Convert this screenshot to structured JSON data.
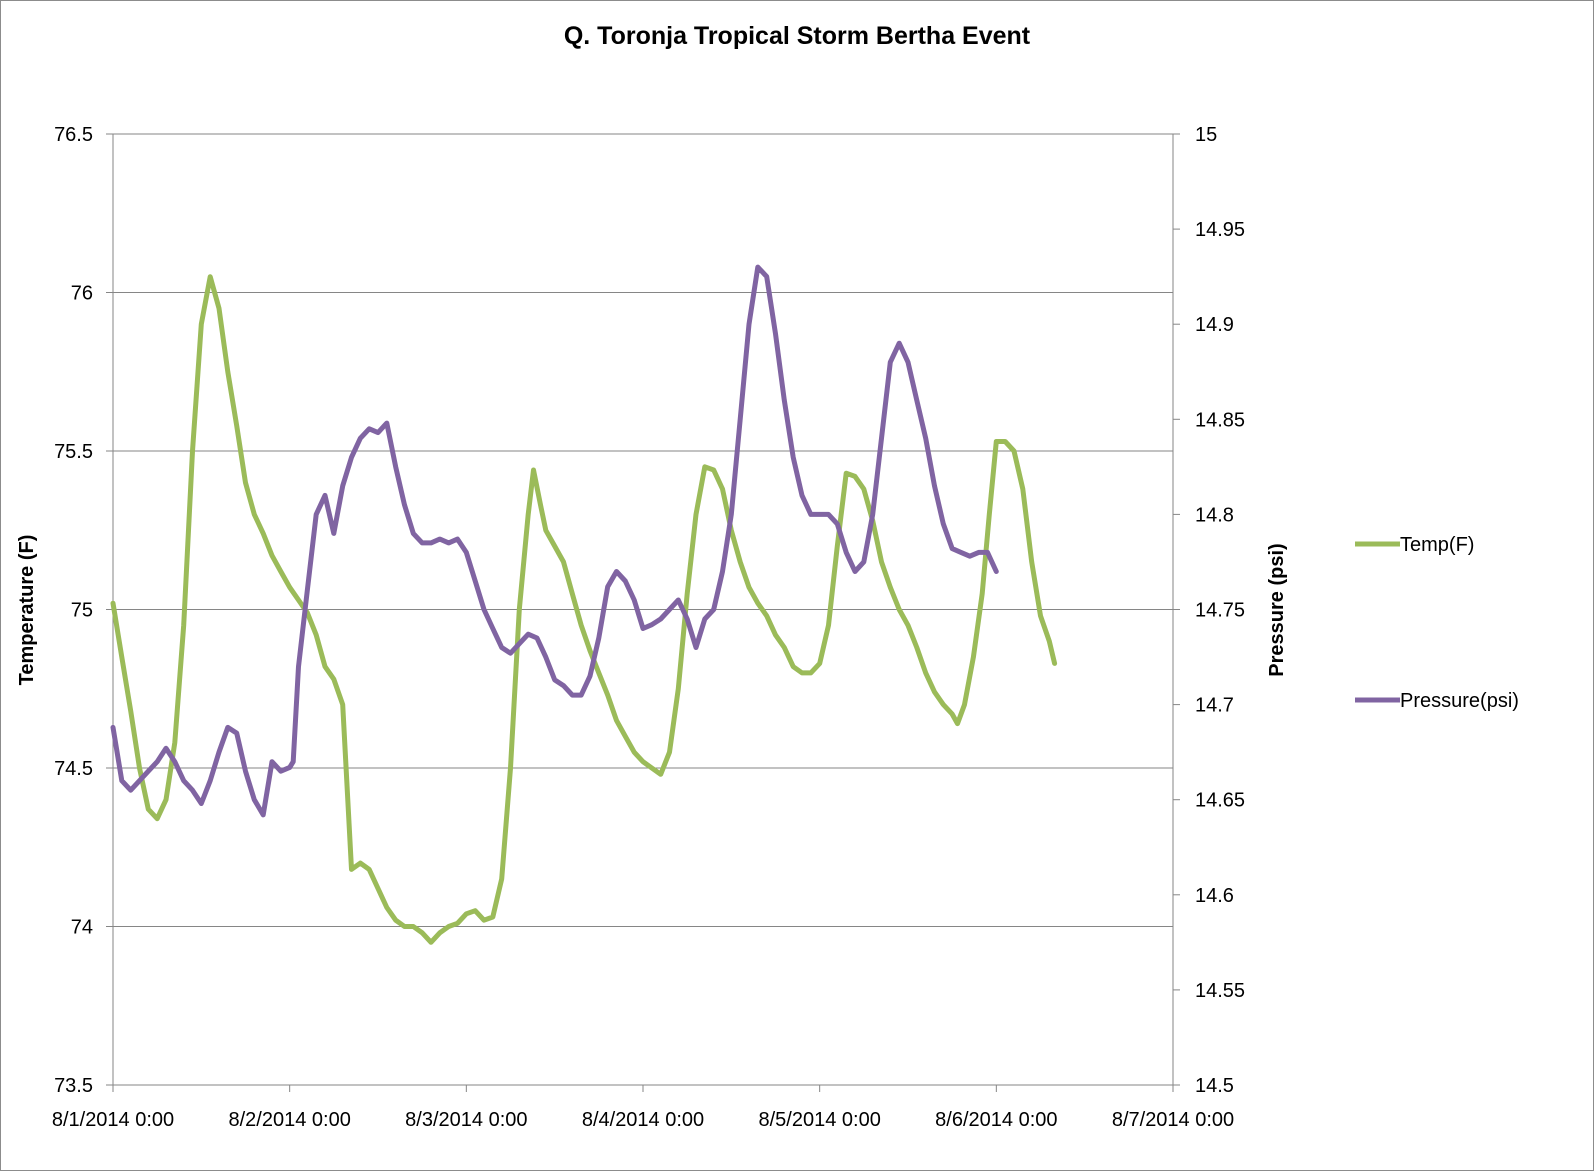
{
  "chart_data": {
    "type": "line",
    "title": "Q. Toronja Tropical Storm Bertha Event",
    "y_left_label": "Temperature (F)",
    "y_right_label": "Pressure (psi)",
    "x_range": [
      0,
      6
    ],
    "x_ticks": [
      "8/1/2014 0:00",
      "8/2/2014 0:00",
      "8/3/2014 0:00",
      "8/4/2014 0:00",
      "8/5/2014 0:00",
      "8/6/2014 0:00",
      "8/7/2014 0:00"
    ],
    "y_left_ylim": [
      73.5,
      76.5
    ],
    "y_left_ticks": [
      "73.5",
      "74",
      "74.5",
      "75",
      "75.5",
      "76",
      "76.5"
    ],
    "y_right_ylim": [
      14.5,
      15.0
    ],
    "y_right_ticks": [
      "14.5",
      "14.55",
      "14.6",
      "14.65",
      "14.7",
      "14.75",
      "14.8",
      "14.85",
      "14.9",
      "14.95",
      "15"
    ],
    "grid": "horizontal",
    "legend_position": "right",
    "series": [
      {
        "name": "Temp(F)",
        "axis": "left",
        "color": "#9BBB59",
        "points": [
          [
            0.0,
            75.02
          ],
          [
            0.05,
            74.85
          ],
          [
            0.1,
            74.68
          ],
          [
            0.15,
            74.5
          ],
          [
            0.2,
            74.37
          ],
          [
            0.25,
            74.34
          ],
          [
            0.3,
            74.4
          ],
          [
            0.35,
            74.58
          ],
          [
            0.4,
            74.95
          ],
          [
            0.45,
            75.5
          ],
          [
            0.5,
            75.9
          ],
          [
            0.55,
            76.05
          ],
          [
            0.6,
            75.95
          ],
          [
            0.65,
            75.75
          ],
          [
            0.7,
            75.58
          ],
          [
            0.75,
            75.4
          ],
          [
            0.8,
            75.3
          ],
          [
            0.85,
            75.24
          ],
          [
            0.9,
            75.17
          ],
          [
            0.95,
            75.12
          ],
          [
            1.0,
            75.07
          ],
          [
            1.05,
            75.03
          ],
          [
            1.1,
            74.99
          ],
          [
            1.15,
            74.92
          ],
          [
            1.2,
            74.82
          ],
          [
            1.25,
            74.78
          ],
          [
            1.3,
            74.7
          ],
          [
            1.35,
            74.18
          ],
          [
            1.4,
            74.2
          ],
          [
            1.45,
            74.18
          ],
          [
            1.5,
            74.12
          ],
          [
            1.55,
            74.06
          ],
          [
            1.6,
            74.02
          ],
          [
            1.65,
            74.0
          ],
          [
            1.7,
            74.0
          ],
          [
            1.75,
            73.98
          ],
          [
            1.8,
            73.95
          ],
          [
            1.85,
            73.98
          ],
          [
            1.9,
            74.0
          ],
          [
            1.95,
            74.01
          ],
          [
            2.0,
            74.04
          ],
          [
            2.05,
            74.05
          ],
          [
            2.1,
            74.02
          ],
          [
            2.15,
            74.03
          ],
          [
            2.2,
            74.15
          ],
          [
            2.25,
            74.5
          ],
          [
            2.3,
            75.0
          ],
          [
            2.35,
            75.3
          ],
          [
            2.38,
            75.44
          ],
          [
            2.42,
            75.33
          ],
          [
            2.45,
            75.25
          ],
          [
            2.5,
            75.2
          ],
          [
            2.55,
            75.15
          ],
          [
            2.6,
            75.05
          ],
          [
            2.65,
            74.95
          ],
          [
            2.7,
            74.87
          ],
          [
            2.75,
            74.8
          ],
          [
            2.8,
            74.73
          ],
          [
            2.85,
            74.65
          ],
          [
            2.9,
            74.6
          ],
          [
            2.95,
            74.55
          ],
          [
            3.0,
            74.52
          ],
          [
            3.05,
            74.5
          ],
          [
            3.1,
            74.48
          ],
          [
            3.15,
            74.55
          ],
          [
            3.2,
            74.75
          ],
          [
            3.25,
            75.05
          ],
          [
            3.3,
            75.3
          ],
          [
            3.35,
            75.45
          ],
          [
            3.4,
            75.44
          ],
          [
            3.45,
            75.38
          ],
          [
            3.5,
            75.25
          ],
          [
            3.55,
            75.15
          ],
          [
            3.6,
            75.07
          ],
          [
            3.65,
            75.02
          ],
          [
            3.7,
            74.98
          ],
          [
            3.75,
            74.92
          ],
          [
            3.8,
            74.88
          ],
          [
            3.85,
            74.82
          ],
          [
            3.9,
            74.8
          ],
          [
            3.95,
            74.8
          ],
          [
            4.0,
            74.83
          ],
          [
            4.05,
            74.95
          ],
          [
            4.1,
            75.2
          ],
          [
            4.15,
            75.43
          ],
          [
            4.2,
            75.42
          ],
          [
            4.25,
            75.38
          ],
          [
            4.3,
            75.28
          ],
          [
            4.35,
            75.15
          ],
          [
            4.4,
            75.07
          ],
          [
            4.45,
            75.0
          ],
          [
            4.5,
            74.95
          ],
          [
            4.55,
            74.88
          ],
          [
            4.6,
            74.8
          ],
          [
            4.65,
            74.74
          ],
          [
            4.7,
            74.7
          ],
          [
            4.75,
            74.67
          ],
          [
            4.78,
            74.64
          ],
          [
            4.82,
            74.7
          ],
          [
            4.87,
            74.85
          ],
          [
            4.92,
            75.05
          ],
          [
            4.96,
            75.3
          ],
          [
            5.0,
            75.53
          ],
          [
            5.05,
            75.53
          ],
          [
            5.1,
            75.5
          ],
          [
            5.15,
            75.38
          ],
          [
            5.2,
            75.15
          ],
          [
            5.25,
            74.98
          ],
          [
            5.3,
            74.9
          ],
          [
            5.33,
            74.83
          ]
        ]
      },
      {
        "name": "Pressure(psi)",
        "axis": "right",
        "color": "#8064A2",
        "points": [
          [
            0.0,
            14.688
          ],
          [
            0.05,
            14.66
          ],
          [
            0.1,
            14.655
          ],
          [
            0.15,
            14.66
          ],
          [
            0.2,
            14.665
          ],
          [
            0.25,
            14.67
          ],
          [
            0.3,
            14.677
          ],
          [
            0.35,
            14.67
          ],
          [
            0.4,
            14.66
          ],
          [
            0.45,
            14.655
          ],
          [
            0.5,
            14.648
          ],
          [
            0.55,
            14.66
          ],
          [
            0.6,
            14.675
          ],
          [
            0.65,
            14.688
          ],
          [
            0.7,
            14.685
          ],
          [
            0.75,
            14.665
          ],
          [
            0.8,
            14.65
          ],
          [
            0.85,
            14.642
          ],
          [
            0.9,
            14.67
          ],
          [
            0.95,
            14.665
          ],
          [
            1.0,
            14.667
          ],
          [
            1.02,
            14.67
          ],
          [
            1.05,
            14.72
          ],
          [
            1.1,
            14.76
          ],
          [
            1.15,
            14.8
          ],
          [
            1.2,
            14.81
          ],
          [
            1.25,
            14.79
          ],
          [
            1.3,
            14.815
          ],
          [
            1.35,
            14.83
          ],
          [
            1.4,
            14.84
          ],
          [
            1.45,
            14.845
          ],
          [
            1.5,
            14.843
          ],
          [
            1.55,
            14.848
          ],
          [
            1.6,
            14.825
          ],
          [
            1.65,
            14.805
          ],
          [
            1.7,
            14.79
          ],
          [
            1.75,
            14.785
          ],
          [
            1.8,
            14.785
          ],
          [
            1.85,
            14.787
          ],
          [
            1.9,
            14.785
          ],
          [
            1.95,
            14.787
          ],
          [
            2.0,
            14.78
          ],
          [
            2.05,
            14.765
          ],
          [
            2.1,
            14.75
          ],
          [
            2.15,
            14.74
          ],
          [
            2.2,
            14.73
          ],
          [
            2.25,
            14.727
          ],
          [
            2.3,
            14.732
          ],
          [
            2.35,
            14.737
          ],
          [
            2.4,
            14.735
          ],
          [
            2.45,
            14.725
          ],
          [
            2.5,
            14.713
          ],
          [
            2.55,
            14.71
          ],
          [
            2.6,
            14.705
          ],
          [
            2.65,
            14.705
          ],
          [
            2.7,
            14.715
          ],
          [
            2.75,
            14.735
          ],
          [
            2.8,
            14.762
          ],
          [
            2.85,
            14.77
          ],
          [
            2.9,
            14.765
          ],
          [
            2.95,
            14.755
          ],
          [
            3.0,
            14.74
          ],
          [
            3.05,
            14.742
          ],
          [
            3.1,
            14.745
          ],
          [
            3.15,
            14.75
          ],
          [
            3.2,
            14.755
          ],
          [
            3.25,
            14.745
          ],
          [
            3.3,
            14.73
          ],
          [
            3.35,
            14.745
          ],
          [
            3.4,
            14.75
          ],
          [
            3.45,
            14.77
          ],
          [
            3.5,
            14.8
          ],
          [
            3.55,
            14.85
          ],
          [
            3.6,
            14.9
          ],
          [
            3.65,
            14.93
          ],
          [
            3.7,
            14.925
          ],
          [
            3.75,
            14.895
          ],
          [
            3.8,
            14.86
          ],
          [
            3.85,
            14.83
          ],
          [
            3.9,
            14.81
          ],
          [
            3.95,
            14.8
          ],
          [
            4.0,
            14.8
          ],
          [
            4.05,
            14.8
          ],
          [
            4.1,
            14.795
          ],
          [
            4.15,
            14.78
          ],
          [
            4.2,
            14.77
          ],
          [
            4.25,
            14.775
          ],
          [
            4.3,
            14.8
          ],
          [
            4.35,
            14.84
          ],
          [
            4.4,
            14.88
          ],
          [
            4.45,
            14.89
          ],
          [
            4.5,
            14.88
          ],
          [
            4.55,
            14.86
          ],
          [
            4.6,
            14.84
          ],
          [
            4.65,
            14.815
          ],
          [
            4.7,
            14.795
          ],
          [
            4.75,
            14.782
          ],
          [
            4.8,
            14.78
          ],
          [
            4.85,
            14.778
          ],
          [
            4.9,
            14.78
          ],
          [
            4.95,
            14.78
          ],
          [
            5.0,
            14.77
          ]
        ]
      }
    ]
  }
}
